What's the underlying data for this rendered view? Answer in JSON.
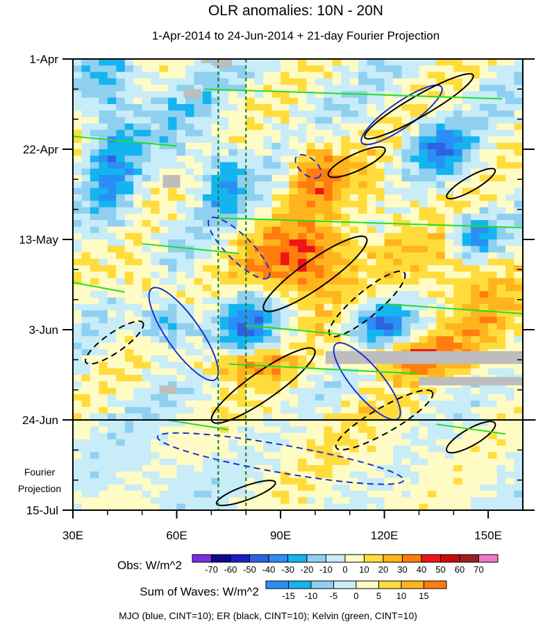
{
  "chart_data": {
    "type": "heatmap",
    "title": "OLR anomalies: 10N - 20N",
    "subtitle": "1-Apr-2014 to 24-Jun-2014 + 21-day Fourier Projection",
    "x_axis": {
      "unit": "degrees east longitude",
      "range": [
        30,
        160
      ],
      "ticks": [
        30,
        60,
        90,
        120,
        150
      ],
      "tick_labels": [
        "30E",
        "60E",
        "90E",
        "120E",
        "150E"
      ]
    },
    "y_axis": {
      "reversed": true,
      "range": [
        "2014-04-01",
        "2014-07-15"
      ],
      "ticks": [
        "2014-04-01",
        "2014-04-22",
        "2014-05-13",
        "2014-06-03",
        "2014-06-24",
        "2014-07-15"
      ],
      "tick_labels": [
        "1-Apr",
        "22-Apr",
        "13-May",
        "3-Jun",
        "24-Jun",
        "15-Jul"
      ]
    },
    "observed_end_date": "2014-06-24",
    "projection_label_line1": "Fourier",
    "projection_label_line2": "Projection",
    "vertical_reference_longitudes": [
      72,
      80
    ],
    "obs_colorbar": {
      "title": "Obs: W/m^2",
      "levels": [
        -70,
        -60,
        -50,
        -40,
        -30,
        -20,
        -10,
        0,
        10,
        20,
        30,
        40,
        50,
        60,
        70
      ],
      "colors": [
        "#7a2ee0",
        "#0a0a8c",
        "#1c1cc8",
        "#2f62e0",
        "#2a8ff5",
        "#14b4f0",
        "#8fd0f0",
        "#c8ecf8",
        "#fffbc4",
        "#ffdc3c",
        "#ffb41e",
        "#ff7d0f",
        "#f01414",
        "#c80a0a",
        "#a01e1e",
        "#f078c8"
      ]
    },
    "waves_colorbar": {
      "title": "Sum of Waves: W/m^2",
      "levels": [
        -15,
        -10,
        -5,
        0,
        5,
        10,
        15
      ],
      "colors": [
        "#2a8ff5",
        "#14b4f0",
        "#8fd0f0",
        "#c8ecf8",
        "#fffbc4",
        "#ffdc3c",
        "#ffb41e",
        "#ff7d0f"
      ]
    },
    "wave_legend": "MJO (blue, CINT=10); ER (black, CINT=10); Kelvin (green, CINT=10)",
    "wave_colors": {
      "MJO": "#1a2fd0",
      "ER": "#000000",
      "Kelvin": "#22dd22"
    },
    "missing_data_color": "#bdbdbd"
  }
}
